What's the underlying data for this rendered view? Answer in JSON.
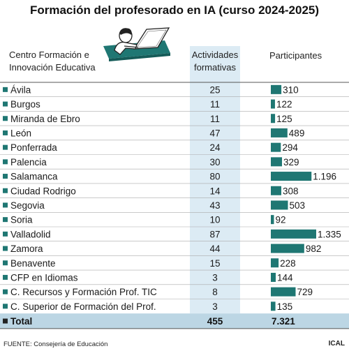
{
  "title": "Formación del profesorado en IA (curso 2024-2025)",
  "headers": {
    "centro_line1": "Centro Formación e",
    "centro_line2": "Innovación Educativa",
    "actividades_line1": "Actividades",
    "actividades_line2": "formativas",
    "participantes": "Participantes"
  },
  "colors": {
    "bar": "#1f7773",
    "marker": "#1f7773",
    "column_highlight": "#dcebf4",
    "total_row": "#bcd6e4"
  },
  "chart_data": {
    "type": "table",
    "columns": [
      "Centro Formación e Innovación Educativa",
      "Actividades formativas",
      "Participantes"
    ],
    "rows": [
      {
        "centro": "Ávila",
        "actividades": "25",
        "participantes": 310,
        "participantes_label": "310"
      },
      {
        "centro": "Burgos",
        "actividades": "11",
        "participantes": 122,
        "participantes_label": "122"
      },
      {
        "centro": "Miranda de Ebro",
        "actividades": "11",
        "participantes": 125,
        "participantes_label": "125"
      },
      {
        "centro": "León",
        "actividades": "47",
        "participantes": 489,
        "participantes_label": "489"
      },
      {
        "centro": "Ponferrada",
        "actividades": "24",
        "participantes": 294,
        "participantes_label": "294"
      },
      {
        "centro": "Palencia",
        "actividades": "30",
        "participantes": 329,
        "participantes_label": "329"
      },
      {
        "centro": "Salamanca",
        "actividades": "80",
        "participantes": 1196,
        "participantes_label": "1.196"
      },
      {
        "centro": "Ciudad Rodrigo",
        "actividades": "14",
        "participantes": 308,
        "participantes_label": "308"
      },
      {
        "centro": "Segovia",
        "actividades": "43",
        "participantes": 503,
        "participantes_label": "503"
      },
      {
        "centro": "Soria",
        "actividades": "10",
        "participantes": 92,
        "participantes_label": "92"
      },
      {
        "centro": "Valladolid",
        "actividades": "87",
        "participantes": 1335,
        "participantes_label": "1.335"
      },
      {
        "centro": "Zamora",
        "actividades": "44",
        "participantes": 982,
        "participantes_label": "982"
      },
      {
        "centro": "Benavente",
        "actividades": "15",
        "participantes": 228,
        "participantes_label": "228"
      },
      {
        "centro": "CFP en Idiomas",
        "actividades": "3",
        "participantes": 144,
        "participantes_label": "144"
      },
      {
        "centro": "C. Recursos y Formación Prof. TIC",
        "actividades": "8",
        "participantes": 729,
        "participantes_label": "729"
      },
      {
        "centro": "C. Superior de Formación del Prof.",
        "actividades": "3",
        "participantes": 135,
        "participantes_label": "135"
      }
    ],
    "total": {
      "label": "Total",
      "actividades": "455",
      "participantes": "7.321"
    }
  },
  "footer": "FUENTE: Consejería de Educación",
  "agency": "ICAL"
}
